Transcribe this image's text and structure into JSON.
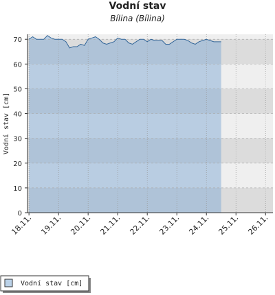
{
  "chart_data": {
    "type": "area",
    "title": "Vodní stav",
    "subtitle": "Bílina (Bílina)",
    "y_label": "Vodní stav [cm]",
    "x": [
      18,
      18.125,
      18.25,
      18.375,
      18.5,
      18.625,
      18.75,
      18.875,
      19,
      19.125,
      19.25,
      19.375,
      19.5,
      19.625,
      19.75,
      19.875,
      20,
      20.125,
      20.25,
      20.375,
      20.5,
      20.625,
      20.75,
      20.875,
      21,
      21.125,
      21.25,
      21.375,
      21.5,
      21.625,
      21.75,
      21.875,
      22,
      22.125,
      22.25,
      22.375,
      22.5,
      22.625,
      22.75,
      22.875,
      23,
      23.125,
      23.25,
      23.375,
      23.5,
      23.625,
      23.75,
      23.875,
      24,
      24.125,
      24.25,
      24.375,
      24.5
    ],
    "series": [
      {
        "name": "Vodní stav [cm]",
        "color": "#336699",
        "values": [
          70,
          71,
          70,
          70,
          70,
          71.5,
          70.5,
          70,
          70,
          70,
          69,
          66.5,
          67,
          67,
          68,
          67.5,
          70,
          70.5,
          71,
          70,
          68.5,
          68,
          68.5,
          69,
          70.5,
          70,
          70,
          68.5,
          68,
          69,
          70,
          70,
          69,
          70,
          69.5,
          69.5,
          69.5,
          68,
          68,
          69,
          70,
          70,
          70,
          69.5,
          68.5,
          68,
          69,
          69.5,
          70,
          69.5,
          69,
          69,
          69
        ]
      }
    ],
    "xlim": [
      17.95,
      26.25
    ],
    "xticks": [
      {
        "value": 18,
        "label": "18.11."
      },
      {
        "value": 19,
        "label": "19.11."
      },
      {
        "value": 20,
        "label": "20.11."
      },
      {
        "value": 21,
        "label": "21.11."
      },
      {
        "value": 22,
        "label": "22.11."
      },
      {
        "value": 23,
        "label": "23.11."
      },
      {
        "value": 24,
        "label": "24.11."
      },
      {
        "value": 25,
        "label": "25.11."
      },
      {
        "value": 26,
        "label": "26.11."
      }
    ],
    "ylim": [
      0,
      72
    ],
    "yticks": [
      0,
      10,
      20,
      30,
      40,
      50,
      60,
      70
    ],
    "grid": true
  }
}
